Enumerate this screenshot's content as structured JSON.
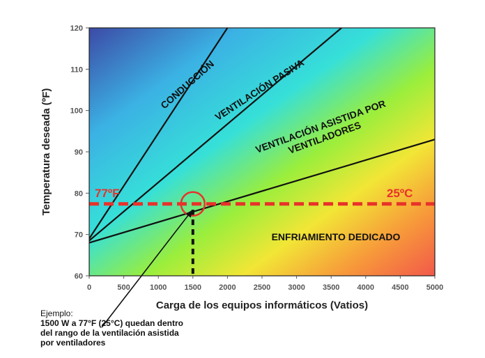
{
  "chart_data": {
    "type": "line",
    "xlabel": "Carga de los equipos informáticos (Vatios)",
    "ylabel": "Temperatura deseada (ºF)",
    "xlim": [
      0,
      5000
    ],
    "ylim": [
      60,
      120
    ],
    "x_ticks": [
      "0",
      "500",
      "1000",
      "1500",
      "2000",
      "2500",
      "3000",
      "3500",
      "4000",
      "4500",
      "5000"
    ],
    "y_ticks": [
      "60",
      "70",
      "80",
      "90",
      "100",
      "110",
      "120"
    ],
    "boundaries": [
      {
        "id": "conduccion-pasiva",
        "points": [
          [
            0,
            69
          ],
          [
            2000,
            120
          ]
        ]
      },
      {
        "id": "pasiva-asistida",
        "points": [
          [
            0,
            68.5
          ],
          [
            3650,
            120
          ]
        ]
      },
      {
        "id": "asistida-dedicado",
        "points": [
          [
            0,
            68
          ],
          [
            5000,
            93
          ]
        ]
      }
    ],
    "regions": [
      {
        "id": "conduccion",
        "label": "CONDUCCIÓN"
      },
      {
        "id": "pasiva",
        "label": "VENTILACIÓN PASIVA"
      },
      {
        "id": "asistida",
        "label_lines": [
          "VENTILACIÓN ASISTIDA POR",
          "VENTILADORES"
        ]
      },
      {
        "id": "dedicado",
        "label": "ENFRIAMIENTO DEDICADO"
      }
    ],
    "reference_line": {
      "y": 77.4,
      "label_left": "77ºF",
      "label_right": "25ºC",
      "color": "#e8322a"
    },
    "marker": {
      "x": 1500,
      "y": 77.4,
      "color": "#e8322a"
    },
    "drop_line": {
      "x": 1500,
      "y_from": 76,
      "y_to": 60
    },
    "annotation": {
      "lead": "Ejemplo:",
      "lines": [
        "1500 W a 77°F (25°C) quedan dentro",
        "del rango de la ventilación asistida",
        "por ventiladores"
      ],
      "arrow_target": [
        1500,
        76
      ]
    }
  }
}
